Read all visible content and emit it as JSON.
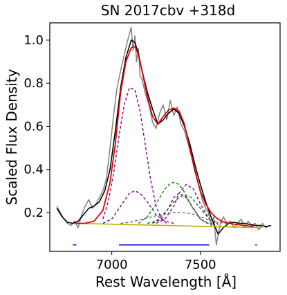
{
  "chart_data": {
    "type": "line",
    "title": "SN 2017cbv  +318d",
    "xlabel": "Rest Wavelength [Å]",
    "ylabel": "Scaled Flux Density",
    "xlim": [
      6650,
      7950
    ],
    "ylim": [
      0.02,
      1.08
    ],
    "xticks": [
      {
        "value": 7000,
        "label": "7000"
      },
      {
        "value": 7500,
        "label": "7500"
      }
    ],
    "yticks": [
      {
        "value": 0.2,
        "label": "0.2"
      },
      {
        "value": 0.4,
        "label": "0.4"
      },
      {
        "value": 0.6,
        "label": "0.6"
      },
      {
        "value": 0.8,
        "label": "0.8"
      },
      {
        "value": 1.0,
        "label": "1.0"
      }
    ],
    "grid": false,
    "colors": {
      "observed": "#808080",
      "smoothed": "#000000",
      "total_fit": "#e00000",
      "purple": "#800080",
      "green": "#008000",
      "gray_component": "#606060",
      "continuum": "#b5b500",
      "ranges": "#0000ff"
    },
    "series": [
      {
        "role": "observed",
        "x": [
          6690,
          6710,
          6730,
          6750,
          6770,
          6790,
          6810,
          6830,
          6850,
          6870,
          6890,
          6910,
          6930,
          6950,
          6970,
          6990,
          7010,
          7030,
          7050,
          7070,
          7090,
          7110,
          7120,
          7130,
          7140,
          7150,
          7160,
          7170,
          7190,
          7210,
          7230,
          7250,
          7270,
          7290,
          7310,
          7330,
          7350,
          7370,
          7390,
          7410,
          7430,
          7450,
          7470,
          7490,
          7510,
          7530,
          7545,
          7560,
          7575,
          7590,
          7610,
          7630,
          7650,
          7670,
          7690,
          7710,
          7730,
          7750,
          7770,
          7790,
          7810,
          7830,
          7850,
          7870,
          7890
        ],
        "y": [
          0.23,
          0.2,
          0.17,
          0.15,
          0.14,
          0.16,
          0.13,
          0.19,
          0.23,
          0.26,
          0.22,
          0.24,
          0.27,
          0.3,
          0.36,
          0.5,
          0.65,
          0.78,
          0.86,
          0.93,
          1.0,
          1.06,
          0.95,
          1.02,
          0.9,
          0.96,
          0.83,
          0.82,
          0.75,
          0.7,
          0.62,
          0.59,
          0.66,
          0.7,
          0.63,
          0.72,
          0.65,
          0.69,
          0.61,
          0.58,
          0.52,
          0.46,
          0.4,
          0.33,
          0.26,
          0.22,
          0.2,
          0.14,
          0.18,
          0.05,
          0.14,
          0.18,
          0.15,
          0.16,
          0.13,
          0.15,
          0.17,
          0.13,
          0.16,
          0.14,
          0.15,
          0.12,
          0.15,
          0.13,
          0.14
        ]
      },
      {
        "role": "smoothed",
        "x": [
          6690,
          6720,
          6750,
          6780,
          6810,
          6840,
          6870,
          6900,
          6930,
          6960,
          6990,
          7020,
          7050,
          7080,
          7110,
          7130,
          7150,
          7170,
          7200,
          7230,
          7260,
          7290,
          7320,
          7350,
          7380,
          7410,
          7440,
          7470,
          7500,
          7530,
          7560,
          7580,
          7600,
          7630,
          7660,
          7690,
          7720,
          7750,
          7780,
          7810,
          7840,
          7870,
          7900
        ],
        "y": [
          0.22,
          0.18,
          0.155,
          0.15,
          0.16,
          0.19,
          0.22,
          0.23,
          0.25,
          0.3,
          0.4,
          0.58,
          0.78,
          0.92,
          1.0,
          0.99,
          0.94,
          0.86,
          0.76,
          0.68,
          0.61,
          0.63,
          0.66,
          0.68,
          0.66,
          0.6,
          0.52,
          0.42,
          0.33,
          0.25,
          0.18,
          0.14,
          0.1,
          0.13,
          0.15,
          0.155,
          0.15,
          0.15,
          0.145,
          0.14,
          0.14,
          0.135,
          0.14
        ]
      },
      {
        "role": "total_fit",
        "x": [
          6790,
          6850,
          6900,
          6950,
          6990,
          7020,
          7050,
          7080,
          7110,
          7130,
          7150,
          7170,
          7200,
          7230,
          7260,
          7290,
          7320,
          7350,
          7380,
          7410,
          7440,
          7470,
          7500,
          7530,
          7560,
          7590,
          7620,
          7660,
          7700,
          7750,
          7800
        ],
        "y": [
          0.15,
          0.15,
          0.16,
          0.21,
          0.34,
          0.52,
          0.76,
          0.9,
          0.965,
          0.97,
          0.935,
          0.86,
          0.74,
          0.645,
          0.61,
          0.645,
          0.675,
          0.685,
          0.67,
          0.61,
          0.5,
          0.39,
          0.3,
          0.24,
          0.2,
          0.175,
          0.16,
          0.15,
          0.145,
          0.14,
          0.135
        ]
      },
      {
        "role": "purple",
        "x": [
          6950,
          6980,
          7010,
          7040,
          7070,
          7100,
          7130,
          7160,
          7190,
          7220,
          7250,
          7280,
          7310
        ],
        "y": [
          0.17,
          0.25,
          0.38,
          0.55,
          0.7,
          0.78,
          0.77,
          0.67,
          0.51,
          0.35,
          0.23,
          0.17,
          0.15
        ]
      },
      {
        "role": "purple",
        "x": [
          6950,
          7000,
          7050,
          7100,
          7130,
          7160,
          7200,
          7250,
          7300,
          7350
        ],
        "y": [
          0.15,
          0.17,
          0.23,
          0.29,
          0.3,
          0.29,
          0.25,
          0.19,
          0.16,
          0.15
        ]
      },
      {
        "role": "purple",
        "x": [
          7230,
          7280,
          7320,
          7350,
          7380,
          7420,
          7460,
          7500,
          7540,
          7580
        ],
        "y": [
          0.15,
          0.17,
          0.22,
          0.27,
          0.29,
          0.27,
          0.22,
          0.17,
          0.15,
          0.145
        ]
      },
      {
        "role": "purple",
        "x": [
          7250,
          7300,
          7350,
          7380,
          7420,
          7460,
          7500,
          7550,
          7600
        ],
        "y": [
          0.15,
          0.17,
          0.23,
          0.29,
          0.33,
          0.31,
          0.24,
          0.17,
          0.145
        ]
      },
      {
        "role": "green",
        "x": [
          7150,
          7200,
          7250,
          7300,
          7330,
          7350,
          7370,
          7400,
          7450,
          7500,
          7550
        ],
        "y": [
          0.15,
          0.18,
          0.24,
          0.31,
          0.335,
          0.34,
          0.335,
          0.31,
          0.23,
          0.17,
          0.15
        ]
      },
      {
        "role": "green",
        "x": [
          7200,
          7250,
          7300,
          7350,
          7400,
          7450,
          7500,
          7550,
          7600
        ],
        "y": [
          0.15,
          0.16,
          0.2,
          0.25,
          0.28,
          0.27,
          0.22,
          0.17,
          0.15
        ]
      },
      {
        "role": "gray_component",
        "x": [
          7050,
          7100,
          7150,
          7200,
          7250,
          7300,
          7350,
          7400,
          7450,
          7500,
          7550,
          7600,
          7650
        ],
        "y": [
          0.15,
          0.155,
          0.165,
          0.175,
          0.185,
          0.195,
          0.2,
          0.2,
          0.195,
          0.18,
          0.165,
          0.155,
          0.15
        ]
      },
      {
        "role": "continuum",
        "x": [
          6790,
          7850
        ],
        "y": [
          0.15,
          0.13
        ]
      }
    ],
    "ranges": [
      {
        "x": [
          6780,
          6800
        ],
        "y": 0.05
      },
      {
        "x": [
          7040,
          7550
        ],
        "y": 0.05
      },
      {
        "x": [
          7810,
          7820
        ],
        "y": 0.05
      }
    ]
  }
}
